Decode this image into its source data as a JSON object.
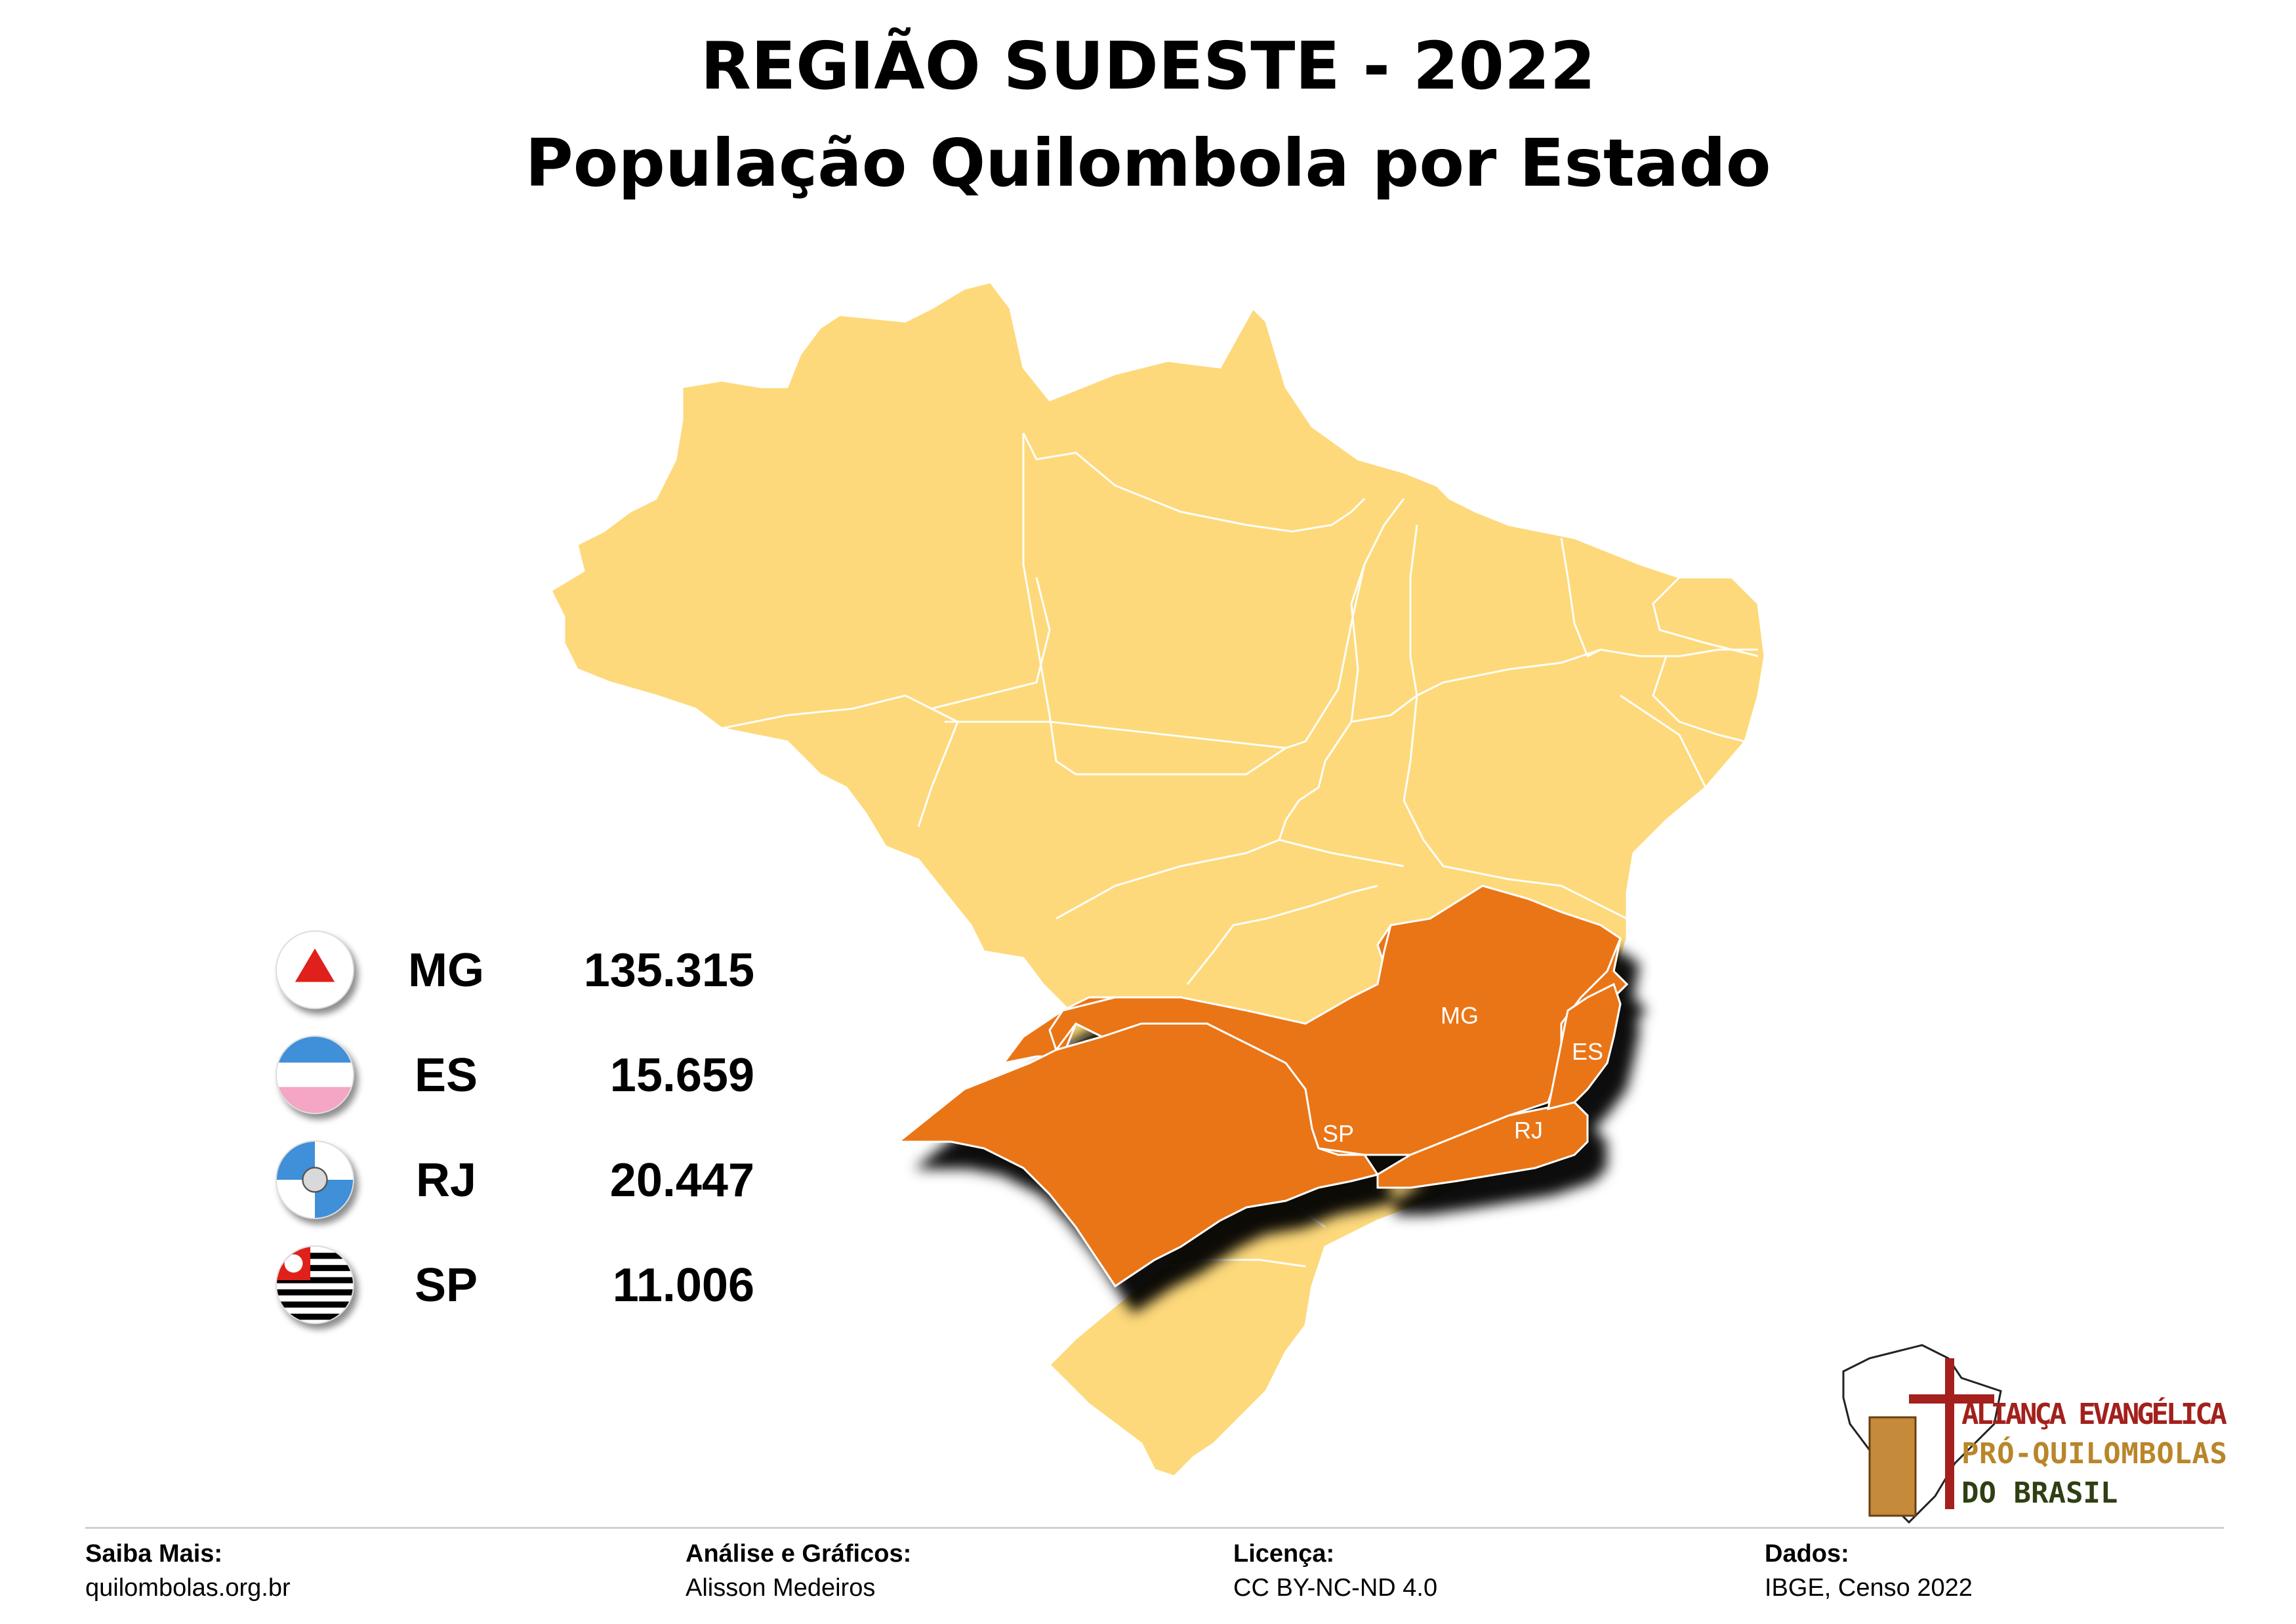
{
  "title": "REGIÃO SUDESTE - 2022",
  "subtitle": "População Quilombola por Estado",
  "map": {
    "base_color": "#FDD97B",
    "highlight_color": "#EA7417",
    "border_color": "#FFFFFF",
    "labels": [
      "MG",
      "ES",
      "RJ",
      "SP"
    ]
  },
  "legend": [
    {
      "abbr": "MG",
      "value": "135.315",
      "flag_icon": "minas-gerais-flag-icon"
    },
    {
      "abbr": "ES",
      "value": "15.659",
      "flag_icon": "espirito-santo-flag-icon"
    },
    {
      "abbr": "RJ",
      "value": "20.447",
      "flag_icon": "rio-de-janeiro-flag-icon"
    },
    {
      "abbr": "SP",
      "value": "11.006",
      "flag_icon": "sao-paulo-flag-icon"
    }
  ],
  "footer": {
    "saiba_mais": {
      "head": "Saiba Mais:",
      "text": "quilombolas.org.br"
    },
    "analise": {
      "head": "Análise e Gráficos:",
      "text": "Alisson Medeiros"
    },
    "licenca": {
      "head": "Licença:",
      "text": "CC BY-NC-ND 4.0"
    },
    "dados": {
      "head": "Dados:",
      "text": "IBGE, Censo 2022"
    }
  },
  "logo": {
    "line1": "ALIANÇA EVANGÉLICA",
    "line2": "PRÓ-QUILOMBOLAS",
    "line3": "DO BRASIL"
  }
}
